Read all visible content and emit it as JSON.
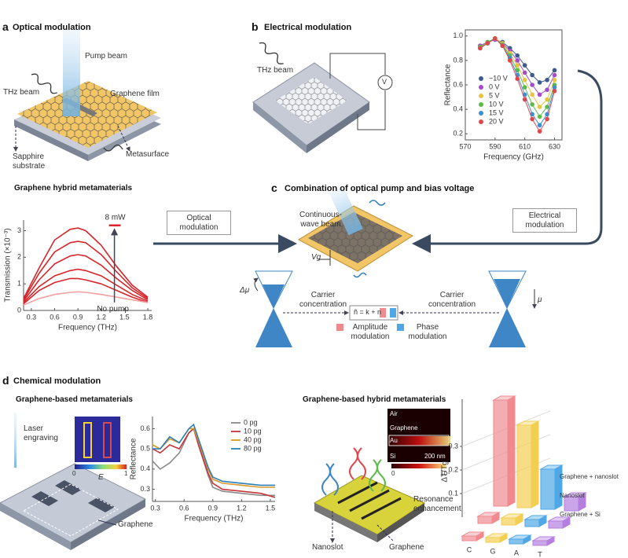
{
  "panel_a": {
    "letter": "a",
    "title": "Optical modulation",
    "pump_beam": "Pump beam",
    "thz_beam": "THz beam",
    "graphene_film": "Graphene film",
    "substrate": "Sapphire substrate",
    "metasurface": "Metasurface",
    "subtitle": "Graphene hybrid metamaterials",
    "chart": {
      "type": "line",
      "ylabel": "Transmission (×10⁻³)",
      "xlabel": "Frequency (THz)",
      "xlim": [
        0.2,
        1.85
      ],
      "ylim": [
        0,
        3.4
      ],
      "xticks": [
        0.3,
        0.6,
        0.9,
        1.2,
        1.5,
        1.8
      ],
      "yticks": [
        0,
        1,
        2,
        3
      ],
      "x": [
        0.2,
        0.4,
        0.6,
        0.8,
        0.9,
        1.0,
        1.2,
        1.4,
        1.6,
        1.8
      ],
      "series": [
        {
          "color": "#d7262b",
          "values": [
            0.45,
            1.6,
            2.65,
            3.05,
            3.1,
            3.0,
            2.45,
            1.65,
            0.95,
            0.5
          ]
        },
        {
          "color": "#d7262b",
          "values": [
            0.4,
            1.4,
            2.2,
            2.55,
            2.6,
            2.55,
            2.1,
            1.45,
            0.85,
            0.45
          ]
        },
        {
          "color": "#d7262b",
          "values": [
            0.35,
            1.15,
            1.75,
            2.05,
            2.1,
            2.05,
            1.7,
            1.2,
            0.75,
            0.4
          ]
        },
        {
          "color": "#d7262b",
          "values": [
            0.3,
            0.9,
            1.3,
            1.5,
            1.55,
            1.5,
            1.3,
            0.95,
            0.6,
            0.35
          ]
        },
        {
          "color": "#d7262b",
          "values": [
            0.25,
            0.75,
            1.05,
            1.2,
            1.2,
            1.15,
            1.0,
            0.75,
            0.5,
            0.3
          ]
        },
        {
          "color": "#f2a0a0",
          "values": [
            0.2,
            0.45,
            0.6,
            0.68,
            0.7,
            0.68,
            0.6,
            0.5,
            0.4,
            0.3
          ]
        }
      ],
      "annotations": {
        "power": "8 mW",
        "baseline": "No pump"
      }
    }
  },
  "arrows": {
    "optical": "Optical modulation",
    "electrical": "Electrical modulation"
  },
  "panel_b": {
    "letter": "b",
    "title": "Electrical modulation",
    "thz_beam": "THz beam",
    "voltmeter": "V",
    "chart": {
      "type": "line",
      "ylabel": "Reflectance",
      "xlabel": "Frequency (GHz)",
      "xlim": [
        570,
        635
      ],
      "ylim": [
        0.15,
        1.05
      ],
      "xticks": [
        570,
        590,
        610,
        630
      ],
      "yticks": [
        0.2,
        0.4,
        0.6,
        0.8,
        {
          "value": 1,
          "label": "1.0"
        }
      ],
      "x": [
        580,
        585,
        590,
        595,
        600,
        605,
        610,
        615,
        620,
        625,
        630
      ],
      "series": [
        {
          "name": "−10 V",
          "color": "#3c5a8c",
          "values": [
            0.92,
            0.95,
            0.97,
            0.95,
            0.9,
            0.84,
            0.76,
            0.68,
            0.62,
            0.64,
            0.72
          ]
        },
        {
          "name": "0 V",
          "color": "#a64ac9",
          "values": [
            0.92,
            0.95,
            0.97,
            0.94,
            0.88,
            0.8,
            0.7,
            0.6,
            0.52,
            0.56,
            0.68
          ]
        },
        {
          "name": "5 V",
          "color": "#e8c341",
          "values": [
            0.91,
            0.95,
            0.98,
            0.94,
            0.86,
            0.76,
            0.64,
            0.52,
            0.42,
            0.48,
            0.64
          ]
        },
        {
          "name": "10 V",
          "color": "#5dbb4a",
          "values": [
            0.91,
            0.95,
            0.98,
            0.93,
            0.84,
            0.72,
            0.58,
            0.44,
            0.34,
            0.42,
            0.6
          ]
        },
        {
          "name": "15 V",
          "color": "#3a8fd6",
          "values": [
            0.9,
            0.94,
            0.98,
            0.92,
            0.82,
            0.68,
            0.52,
            0.36,
            0.27,
            0.36,
            0.58
          ]
        },
        {
          "name": "20 V",
          "color": "#e0474c",
          "values": [
            0.9,
            0.94,
            0.98,
            0.92,
            0.8,
            0.65,
            0.48,
            0.32,
            0.22,
            0.32,
            0.55
          ]
        }
      ]
    }
  },
  "panel_c": {
    "letter": "c",
    "title": "Combination of optical pump and bias voltage",
    "beam": "Continuous-wave beam",
    "gate": "Vg",
    "delta_mu": "Δμ",
    "mu": "μ",
    "carrier_left": "Carrier concentration",
    "carrier_right": "Carrier concentration",
    "formula": "ñ = k + n",
    "amplitude": "Amplitude modulation",
    "phase": "Phase modulation"
  },
  "panel_d": {
    "letter": "d",
    "title": "Chemical modulation",
    "left_title": "Graphene-based metamaterials",
    "laser": "Laser engraving",
    "graphene": "Graphene",
    "colorbar": {
      "min": "0",
      "max": "1",
      "label": "E"
    },
    "chart": {
      "type": "line",
      "ylabel": "Reflectance",
      "xlabel": "Frequency (THz)",
      "xlim": [
        0.27,
        1.55
      ],
      "ylim": [
        0.24,
        0.66
      ],
      "xticks": [
        0.3,
        0.6,
        0.9,
        1.2,
        1.5
      ],
      "yticks": [
        0.3,
        0.4,
        0.5,
        0.6
      ],
      "x": [
        0.27,
        0.35,
        0.45,
        0.55,
        0.65,
        0.7,
        0.75,
        0.85,
        0.9,
        1.0,
        1.2,
        1.4,
        1.55
      ],
      "series": [
        {
          "name": "0 pg",
          "color": "#8a8a8a",
          "values": [
            0.44,
            0.4,
            0.43,
            0.48,
            0.58,
            0.6,
            0.52,
            0.37,
            0.31,
            0.29,
            0.28,
            0.27,
            0.27
          ]
        },
        {
          "name": "10 pg",
          "color": "#c8343a",
          "values": [
            0.5,
            0.48,
            0.52,
            0.5,
            0.58,
            0.6,
            0.52,
            0.38,
            0.33,
            0.3,
            0.29,
            0.28,
            0.26
          ]
        },
        {
          "name": "40 pg",
          "color": "#d99a2b",
          "values": [
            0.52,
            0.5,
            0.55,
            0.53,
            0.6,
            0.6,
            0.54,
            0.4,
            0.35,
            0.33,
            0.32,
            0.31,
            0.31
          ]
        },
        {
          "name": "80 pg",
          "color": "#2c7fb8",
          "values": [
            0.5,
            0.5,
            0.56,
            0.53,
            0.6,
            0.62,
            0.55,
            0.41,
            0.36,
            0.34,
            0.33,
            0.32,
            0.32
          ]
        }
      ]
    },
    "right_title": "Graphene-based hybrid metamaterials",
    "field_map": {
      "air": "Air",
      "graphene": "Graphene",
      "au": "Au",
      "si": "Si",
      "scale": "200 nm",
      "min": "0",
      "max": "10⁴"
    },
    "nanoslot": "Nanoslot",
    "graphene_right": "Graphene",
    "resonance": "Resonance enhancement",
    "bars": {
      "type": "bar3d",
      "ylabel": "ΔT/Tg",
      "ylim": [
        0,
        0.5
      ],
      "yticks": [
        0.1,
        0.2,
        0.3
      ],
      "categories": [
        "C",
        "G",
        "A",
        "T"
      ],
      "category_colors": [
        "#f08a8f",
        "#f2cf52",
        "#4fa8e6",
        "#b57fe0"
      ],
      "series": [
        {
          "name": "Graphene + nanoslot",
          "values": [
            0.45,
            0.35,
            0.17,
            0.06
          ]
        },
        {
          "name": "Nanoslot",
          "values": [
            0.03,
            0.03,
            0.03,
            0.03
          ]
        },
        {
          "name": "Graphene + Si",
          "values": [
            0.02,
            0.02,
            0.02,
            0.02
          ]
        }
      ]
    }
  }
}
